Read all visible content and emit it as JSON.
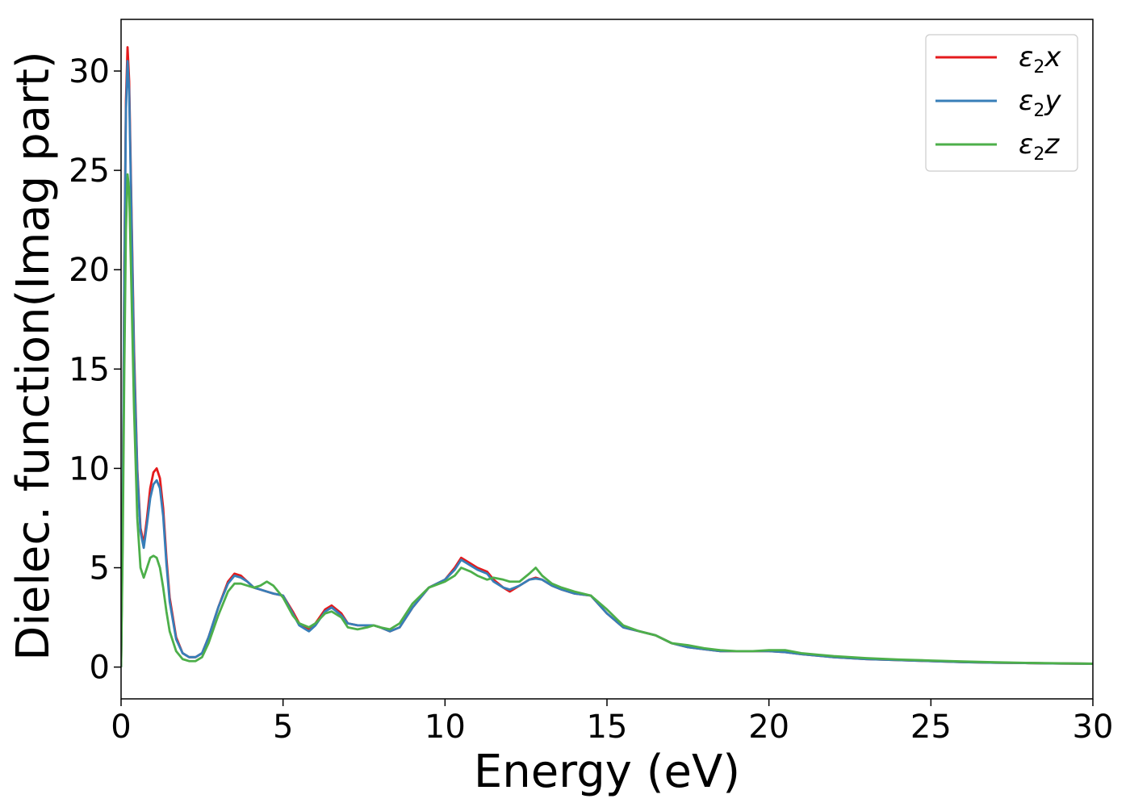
{
  "chart_data": {
    "type": "line",
    "xlabel": "Energy (eV)",
    "ylabel": "Dielec. function(Imag part)",
    "xlim": [
      0,
      30
    ],
    "ylim": [
      -1.6,
      32.6
    ],
    "xticks": [
      0,
      5,
      10,
      15,
      20,
      25,
      30
    ],
    "yticks": [
      0,
      5,
      10,
      15,
      20,
      25,
      30
    ],
    "grid": false,
    "legend_position": "top-right",
    "series": [
      {
        "name": "ε₂x",
        "legend_main": "ε",
        "legend_sub": "2",
        "legend_var": "x",
        "color": "#e41a1c",
        "x": [
          0,
          0.05,
          0.1,
          0.15,
          0.2,
          0.25,
          0.3,
          0.4,
          0.5,
          0.6,
          0.7,
          0.8,
          0.9,
          1.0,
          1.1,
          1.2,
          1.3,
          1.4,
          1.5,
          1.7,
          1.9,
          2.1,
          2.3,
          2.5,
          2.7,
          3.0,
          3.3,
          3.5,
          3.7,
          3.9,
          4.1,
          4.3,
          4.5,
          4.7,
          5.0,
          5.3,
          5.5,
          5.8,
          6.0,
          6.3,
          6.5,
          6.8,
          7.0,
          7.3,
          7.6,
          7.8,
          8.0,
          8.3,
          8.6,
          9.0,
          9.5,
          10.0,
          10.3,
          10.5,
          10.8,
          11.0,
          11.3,
          11.5,
          11.8,
          12.0,
          12.3,
          12.6,
          12.8,
          13.0,
          13.3,
          13.6,
          14.0,
          14.5,
          15.0,
          15.5,
          16.0,
          16.5,
          17.0,
          17.5,
          18.0,
          18.5,
          19.0,
          19.5,
          20.0,
          20.5,
          21.0,
          22.0,
          23.0,
          24.0,
          25.0,
          26.0,
          27.0,
          28.0,
          29.0,
          30.0
        ],
        "values": [
          0,
          8.0,
          20.0,
          28.5,
          31.2,
          29.5,
          25.0,
          16.0,
          10.0,
          7.0,
          6.2,
          7.5,
          9.0,
          9.8,
          10.0,
          9.5,
          8.0,
          5.5,
          3.5,
          1.5,
          0.7,
          0.5,
          0.5,
          0.7,
          1.5,
          3.0,
          4.3,
          4.7,
          4.6,
          4.3,
          4.0,
          3.9,
          3.8,
          3.7,
          3.6,
          2.8,
          2.2,
          1.9,
          2.2,
          2.9,
          3.1,
          2.7,
          2.2,
          2.1,
          2.1,
          2.1,
          2.0,
          1.8,
          2.0,
          3.0,
          4.0,
          4.4,
          5.0,
          5.5,
          5.2,
          5.0,
          4.8,
          4.4,
          4.0,
          3.8,
          4.1,
          4.4,
          4.5,
          4.4,
          4.1,
          3.9,
          3.7,
          3.6,
          2.7,
          2.0,
          1.8,
          1.6,
          1.2,
          1.0,
          0.9,
          0.8,
          0.8,
          0.8,
          0.8,
          0.75,
          0.65,
          0.5,
          0.4,
          0.35,
          0.3,
          0.25,
          0.22,
          0.2,
          0.18,
          0.17
        ]
      },
      {
        "name": "ε₂y",
        "legend_main": "ε",
        "legend_sub": "2",
        "legend_var": "y",
        "color": "#377eb8",
        "x": [
          0,
          0.05,
          0.1,
          0.15,
          0.2,
          0.25,
          0.3,
          0.4,
          0.5,
          0.6,
          0.7,
          0.8,
          0.9,
          1.0,
          1.1,
          1.2,
          1.3,
          1.4,
          1.5,
          1.7,
          1.9,
          2.1,
          2.3,
          2.5,
          2.7,
          3.0,
          3.3,
          3.5,
          3.7,
          3.9,
          4.1,
          4.3,
          4.5,
          4.7,
          5.0,
          5.3,
          5.5,
          5.8,
          6.0,
          6.3,
          6.5,
          6.8,
          7.0,
          7.3,
          7.6,
          7.8,
          8.0,
          8.3,
          8.6,
          9.0,
          9.5,
          10.0,
          10.3,
          10.5,
          10.8,
          11.0,
          11.3,
          11.5,
          11.8,
          12.0,
          12.3,
          12.6,
          12.8,
          13.0,
          13.3,
          13.6,
          14.0,
          14.5,
          15.0,
          15.5,
          16.0,
          16.5,
          17.0,
          17.5,
          18.0,
          18.5,
          19.0,
          19.5,
          20.0,
          20.5,
          21.0,
          22.0,
          23.0,
          24.0,
          25.0,
          26.0,
          27.0,
          28.0,
          29.0,
          30.0
        ],
        "values": [
          0,
          7.5,
          19.5,
          28.0,
          30.5,
          29.0,
          24.5,
          15.5,
          9.8,
          6.8,
          6.0,
          7.2,
          8.5,
          9.2,
          9.4,
          9.0,
          7.6,
          5.2,
          3.3,
          1.4,
          0.7,
          0.5,
          0.5,
          0.7,
          1.5,
          3.0,
          4.2,
          4.6,
          4.5,
          4.3,
          4.0,
          3.9,
          3.8,
          3.7,
          3.6,
          2.7,
          2.1,
          1.8,
          2.1,
          2.8,
          3.0,
          2.6,
          2.2,
          2.1,
          2.1,
          2.1,
          2.0,
          1.8,
          2.0,
          3.0,
          4.0,
          4.4,
          4.9,
          5.4,
          5.1,
          4.9,
          4.7,
          4.3,
          4.0,
          3.9,
          4.1,
          4.4,
          4.45,
          4.4,
          4.1,
          3.9,
          3.7,
          3.6,
          2.7,
          2.0,
          1.8,
          1.6,
          1.2,
          1.0,
          0.9,
          0.8,
          0.8,
          0.8,
          0.8,
          0.75,
          0.65,
          0.5,
          0.4,
          0.35,
          0.3,
          0.25,
          0.22,
          0.2,
          0.18,
          0.17
        ]
      },
      {
        "name": "ε₂z",
        "legend_main": "ε",
        "legend_sub": "2",
        "legend_var": "z",
        "color": "#4daf4a",
        "x": [
          0,
          0.05,
          0.1,
          0.15,
          0.2,
          0.25,
          0.3,
          0.4,
          0.5,
          0.6,
          0.7,
          0.8,
          0.9,
          1.0,
          1.1,
          1.2,
          1.3,
          1.4,
          1.5,
          1.7,
          1.9,
          2.1,
          2.3,
          2.5,
          2.7,
          3.0,
          3.3,
          3.5,
          3.7,
          3.9,
          4.1,
          4.3,
          4.5,
          4.7,
          5.0,
          5.3,
          5.5,
          5.8,
          6.0,
          6.3,
          6.5,
          6.8,
          7.0,
          7.3,
          7.6,
          7.8,
          8.0,
          8.3,
          8.6,
          9.0,
          9.5,
          10.0,
          10.3,
          10.5,
          10.8,
          11.0,
          11.3,
          11.5,
          11.8,
          12.0,
          12.3,
          12.6,
          12.8,
          13.0,
          13.3,
          13.6,
          14.0,
          14.5,
          15.0,
          15.5,
          16.0,
          16.5,
          17.0,
          17.5,
          18.0,
          18.5,
          19.0,
          19.5,
          20.0,
          20.5,
          21.0,
          22.0,
          23.0,
          24.0,
          25.0,
          26.0,
          27.0,
          28.0,
          29.0,
          30.0
        ],
        "values": [
          0,
          6.0,
          15.0,
          22.0,
          24.8,
          24.0,
          20.5,
          13.0,
          7.5,
          5.0,
          4.5,
          5.0,
          5.5,
          5.6,
          5.5,
          5.0,
          4.0,
          2.8,
          1.8,
          0.8,
          0.4,
          0.3,
          0.3,
          0.5,
          1.2,
          2.6,
          3.8,
          4.2,
          4.2,
          4.1,
          4.0,
          4.1,
          4.3,
          4.1,
          3.5,
          2.6,
          2.2,
          2.0,
          2.2,
          2.7,
          2.8,
          2.5,
          2.0,
          1.9,
          2.0,
          2.1,
          2.0,
          1.9,
          2.2,
          3.2,
          4.0,
          4.3,
          4.6,
          5.0,
          4.8,
          4.6,
          4.4,
          4.5,
          4.4,
          4.3,
          4.3,
          4.7,
          5.0,
          4.6,
          4.2,
          4.0,
          3.8,
          3.6,
          2.9,
          2.1,
          1.8,
          1.6,
          1.2,
          1.1,
          0.95,
          0.85,
          0.8,
          0.8,
          0.85,
          0.85,
          0.7,
          0.55,
          0.45,
          0.38,
          0.33,
          0.28,
          0.24,
          0.21,
          0.19,
          0.17
        ]
      }
    ]
  }
}
